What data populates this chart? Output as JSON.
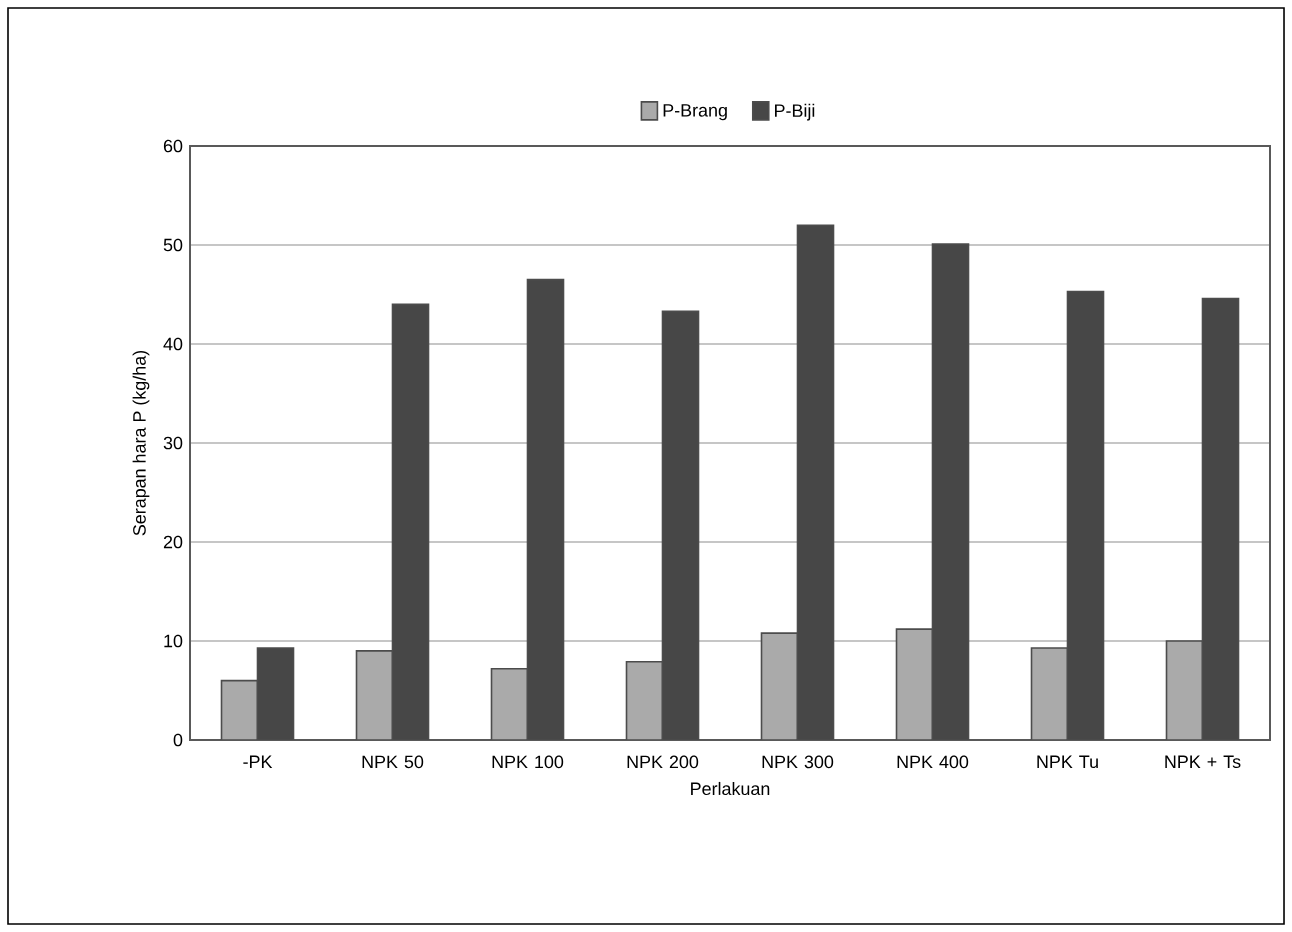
{
  "chart_data": {
    "type": "bar",
    "xlabel": "Perlakuan",
    "ylabel": "Serapan hara P (kg/ha)",
    "categories": [
      "-PK",
      "NPK  50",
      "NPK 100",
      "NPK 200",
      "NPK 300",
      "NPK 400",
      "NPK Tu",
      "NPK + Ts"
    ],
    "series": [
      {
        "name": "P-Brang",
        "color": "#aaaaaa",
        "values": [
          6.0,
          9.0,
          7.2,
          7.9,
          10.8,
          11.2,
          9.3,
          10.0
        ]
      },
      {
        "name": "P-Biji",
        "color": "#474747",
        "values": [
          9.3,
          44.0,
          46.5,
          43.3,
          52.0,
          50.1,
          45.3,
          44.6
        ]
      }
    ],
    "ylim": [
      0,
      60
    ],
    "yticks": [
      0,
      10,
      20,
      30,
      40,
      50,
      60
    ],
    "grid": "y",
    "legend": "top"
  }
}
